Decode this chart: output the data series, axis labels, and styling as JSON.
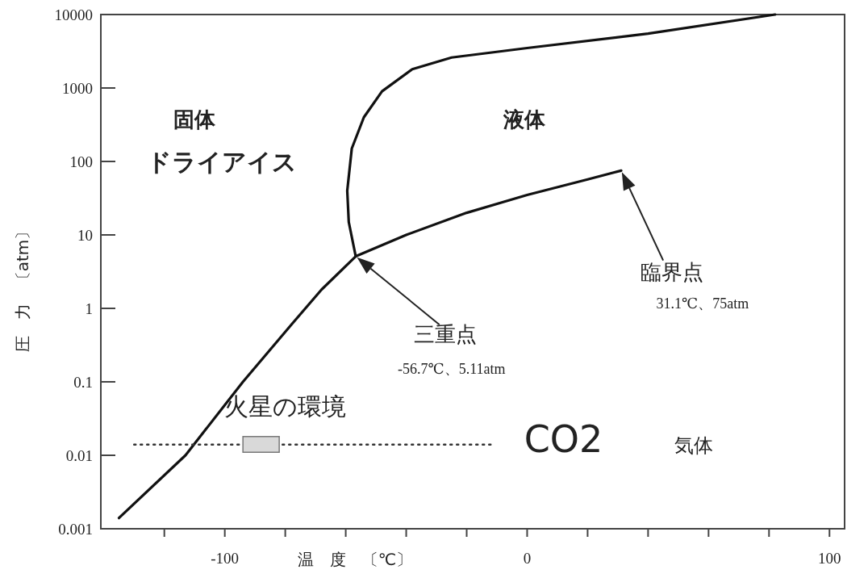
{
  "chart_data": {
    "type": "line",
    "xlabel": "温　度　〔℃〕",
    "ylabel": "圧　力　〔atm〕",
    "log": "y",
    "xlim": [
      -141,
      105
    ],
    "ylim": [
      0.001,
      10000
    ],
    "xticks": [
      {
        "value": -120,
        "label": null
      },
      -100,
      {
        "value": -80,
        "label": null
      },
      {
        "value": -60,
        "label": null
      },
      {
        "value": -40,
        "label": null
      },
      {
        "value": -20,
        "label": null
      },
      0,
      {
        "value": 20,
        "label": null
      },
      {
        "value": 40,
        "label": null
      },
      {
        "value": 60,
        "label": null
      },
      {
        "value": 80,
        "label": null
      },
      100
    ],
    "yticks": [
      0.001,
      0.01,
      0.1,
      1,
      10,
      100,
      1000,
      10000
    ],
    "grid": false,
    "marker": "none",
    "series": [
      {
        "color": "#111111",
        "line_style": "solid",
        "x": [
          -135,
          -113,
          -94,
          -78,
          -68,
          -56.7,
          -40,
          -20,
          0,
          20,
          31.1
        ],
        "values": [
          0.0014,
          0.01,
          0.1,
          0.6,
          1.8,
          5.11,
          10,
          20,
          35,
          57,
          75
        ]
      },
      {
        "color": "#111111",
        "line_style": "solid",
        "x": [
          -56.7,
          -59,
          -59.5,
          -58,
          -54,
          -48,
          -38,
          -25,
          0,
          40,
          82
        ],
        "values": [
          5.11,
          15,
          40,
          150,
          400,
          900,
          1800,
          2600,
          3500,
          5500,
          10000
        ]
      },
      {
        "color": "#333333",
        "line_style": "dotted",
        "x": [
          -130,
          -12
        ],
        "values": [
          0.014,
          0.014
        ]
      }
    ],
    "annotations": [
      "固体",
      "ドライアイス",
      "液体",
      "気体",
      "CO2",
      "火星の環境",
      "三重点",
      "-56.7℃、5.11atm",
      "臨界点",
      "31.1℃、75atm"
    ]
  }
}
